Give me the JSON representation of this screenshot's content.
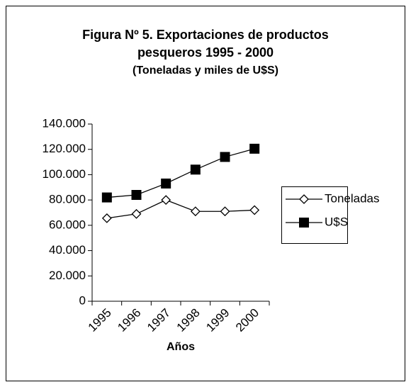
{
  "chart_data": {
    "type": "line",
    "title": "Figura Nº 5.  Exportaciones de productos",
    "title_line2": "pesqueros 1995 - 2000",
    "subtitle": "(Toneladas y miles de U$S)",
    "x_label": "Años",
    "categories": [
      "1995",
      "1996",
      "1997",
      "1998",
      "1999",
      "2000"
    ],
    "series": [
      {
        "name": "Toneladas",
        "color": "#000000",
        "marker": "diamond",
        "values": [
          65600,
          69000,
          80000,
          71000,
          71000,
          72000
        ]
      },
      {
        "name": "U$S",
        "color": "#000000",
        "marker": "square",
        "values": [
          82000,
          84000,
          93000,
          104000,
          114000,
          120500
        ]
      }
    ],
    "ylim": [
      0,
      140000
    ],
    "yticks": [
      0,
      {
        "value": 20000,
        "label": "20.000"
      },
      {
        "value": 40000,
        "label": "40.000"
      },
      {
        "value": 60000,
        "label": "60.000"
      },
      {
        "value": 80000,
        "label": "80.000"
      },
      {
        "value": 100000,
        "label": "100.000"
      },
      {
        "value": 120000,
        "label": "120.000"
      },
      {
        "value": 140000,
        "label": "140.000"
      }
    ],
    "grid": false,
    "legend": "right"
  }
}
